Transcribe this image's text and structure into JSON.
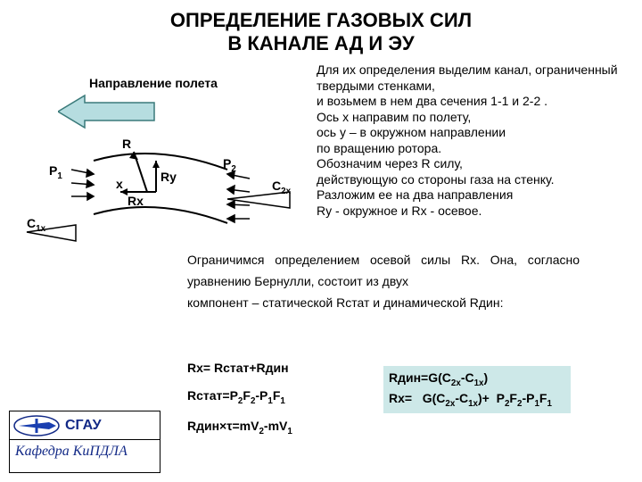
{
  "title_line1": "ОПРЕДЕЛЕНИЕ ГАЗОВЫХ СИЛ",
  "title_line2": "В КАНАЛЕ АД И ЭУ",
  "flight_direction": "Направление полета",
  "right_text": "Для их определения выделим канал, ограниченный твердыми стенками,\n и возьмем в нем два сечения 1-1 и 2-2 .\nОсь x направим по полету,\nось y – в окружном направлении\nпо вращению ротора.\nОбозначим через  R силу,\n действующую со стороны газа на стенку.\nРазложим ее на два направления\nRy - окружное и Rx - осевое.",
  "labels": {
    "R": "R",
    "Ry": "Ry",
    "Rx": "Rx",
    "x": "x",
    "P1": "P",
    "P1_sub": "1",
    "P2": "P",
    "P2_sub": "2",
    "C1x": "C",
    "C1x_sub": "1x",
    "C2x": "C",
    "C2x_sub": "2x"
  },
  "mid_text": "Ограничимся определением осевой силы Rx. Она, согласно уравнению Бернулли, состоит из двух\nкомпонент – статической Rстат и динамической Rдин:",
  "left_formula1": "Rx= Rстат+Rдин",
  "left_formula2_html": "Rстат=P<sub>2</sub>F<sub>2</sub>-P<sub>1</sub>F<sub>1</sub>",
  "left_formula3_html": "Rдин×τ=mV<sub>2</sub>-mV<sub>1</sub>",
  "box_line1_html": "Rдин=G(C<sub>2x</sub>-C<sub>1x</sub>)",
  "box_line2_html": "Rx=&nbsp;&nbsp;&nbsp;G(C<sub>2x</sub>-C<sub>1x</sub>)+&nbsp;&nbsp;P<sub>2</sub>F<sub>2</sub>-P<sub>1</sub>F<sub>1</sub>",
  "logo": {
    "sgau": "СГАУ",
    "dept": "Кафедра КиПДЛА"
  },
  "colors": {
    "arrow_fill": "#b6dde0",
    "arrow_stroke": "#3a7a7a",
    "diagram_stroke": "#000000",
    "box_bg": "#cde8e8",
    "logo_blue": "#132a87",
    "logo_fill": "#1a3fb0"
  }
}
